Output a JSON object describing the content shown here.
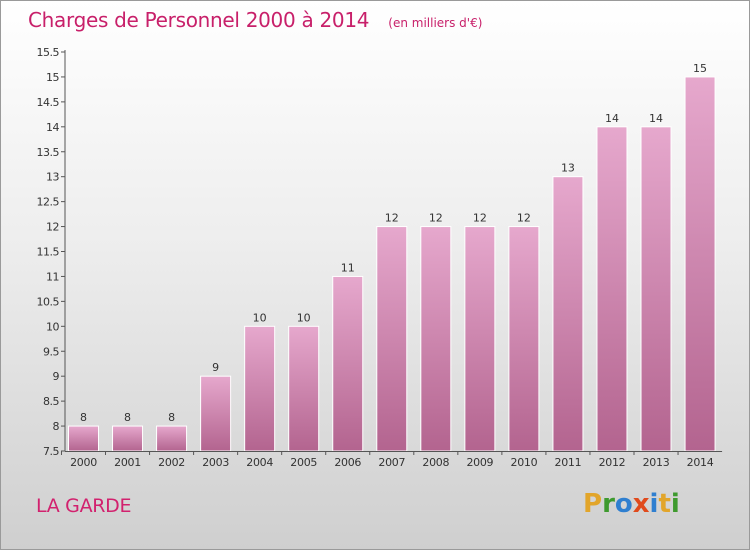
{
  "header": {
    "title": "Charges de Personnel 2000 à 2014",
    "subtitle": "(en milliers d'€)"
  },
  "footer": {
    "place": "LA GARDE",
    "logo_text": "Proxiti",
    "logo_colors": [
      "#e2a52a",
      "#3e9a2e",
      "#2f7fd0",
      "#e04a1c",
      "#2f7fd0",
      "#e2a52a",
      "#3e9a2e"
    ]
  },
  "colors": {
    "title": "#c8206a",
    "bar_top": "#e6a8cd",
    "bar_bottom": "#b3648f",
    "bar_border": "#ffffff"
  },
  "chart_data": {
    "type": "bar",
    "categories": [
      "2000",
      "2001",
      "2002",
      "2003",
      "2004",
      "2005",
      "2006",
      "2007",
      "2008",
      "2009",
      "2010",
      "2011",
      "2012",
      "2013",
      "2014"
    ],
    "values": [
      8,
      8,
      8,
      9,
      10,
      10,
      11,
      12,
      12,
      12,
      12,
      13,
      14,
      14,
      15
    ],
    "data_labels": [
      "8",
      "8",
      "8",
      "9",
      "10",
      "10",
      "11",
      "12",
      "12",
      "12",
      "12",
      "13",
      "14",
      "14",
      "15"
    ],
    "ylim": [
      7.5,
      15.5
    ],
    "yticks": [
      7.5,
      8,
      8.5,
      9,
      9.5,
      10,
      10.5,
      11,
      11.5,
      12,
      12.5,
      13,
      13.5,
      14,
      14.5,
      15,
      15.5
    ],
    "ytick_labels": [
      "7.5",
      "8",
      "8.5",
      "9",
      "9.5",
      "10",
      "10.5",
      "11",
      "11.5",
      "12",
      "12.5",
      "13",
      "13.5",
      "14",
      "14.5",
      "15",
      "15.5"
    ],
    "xlabel": "",
    "ylabel": "",
    "grid": false,
    "legend": "none"
  }
}
